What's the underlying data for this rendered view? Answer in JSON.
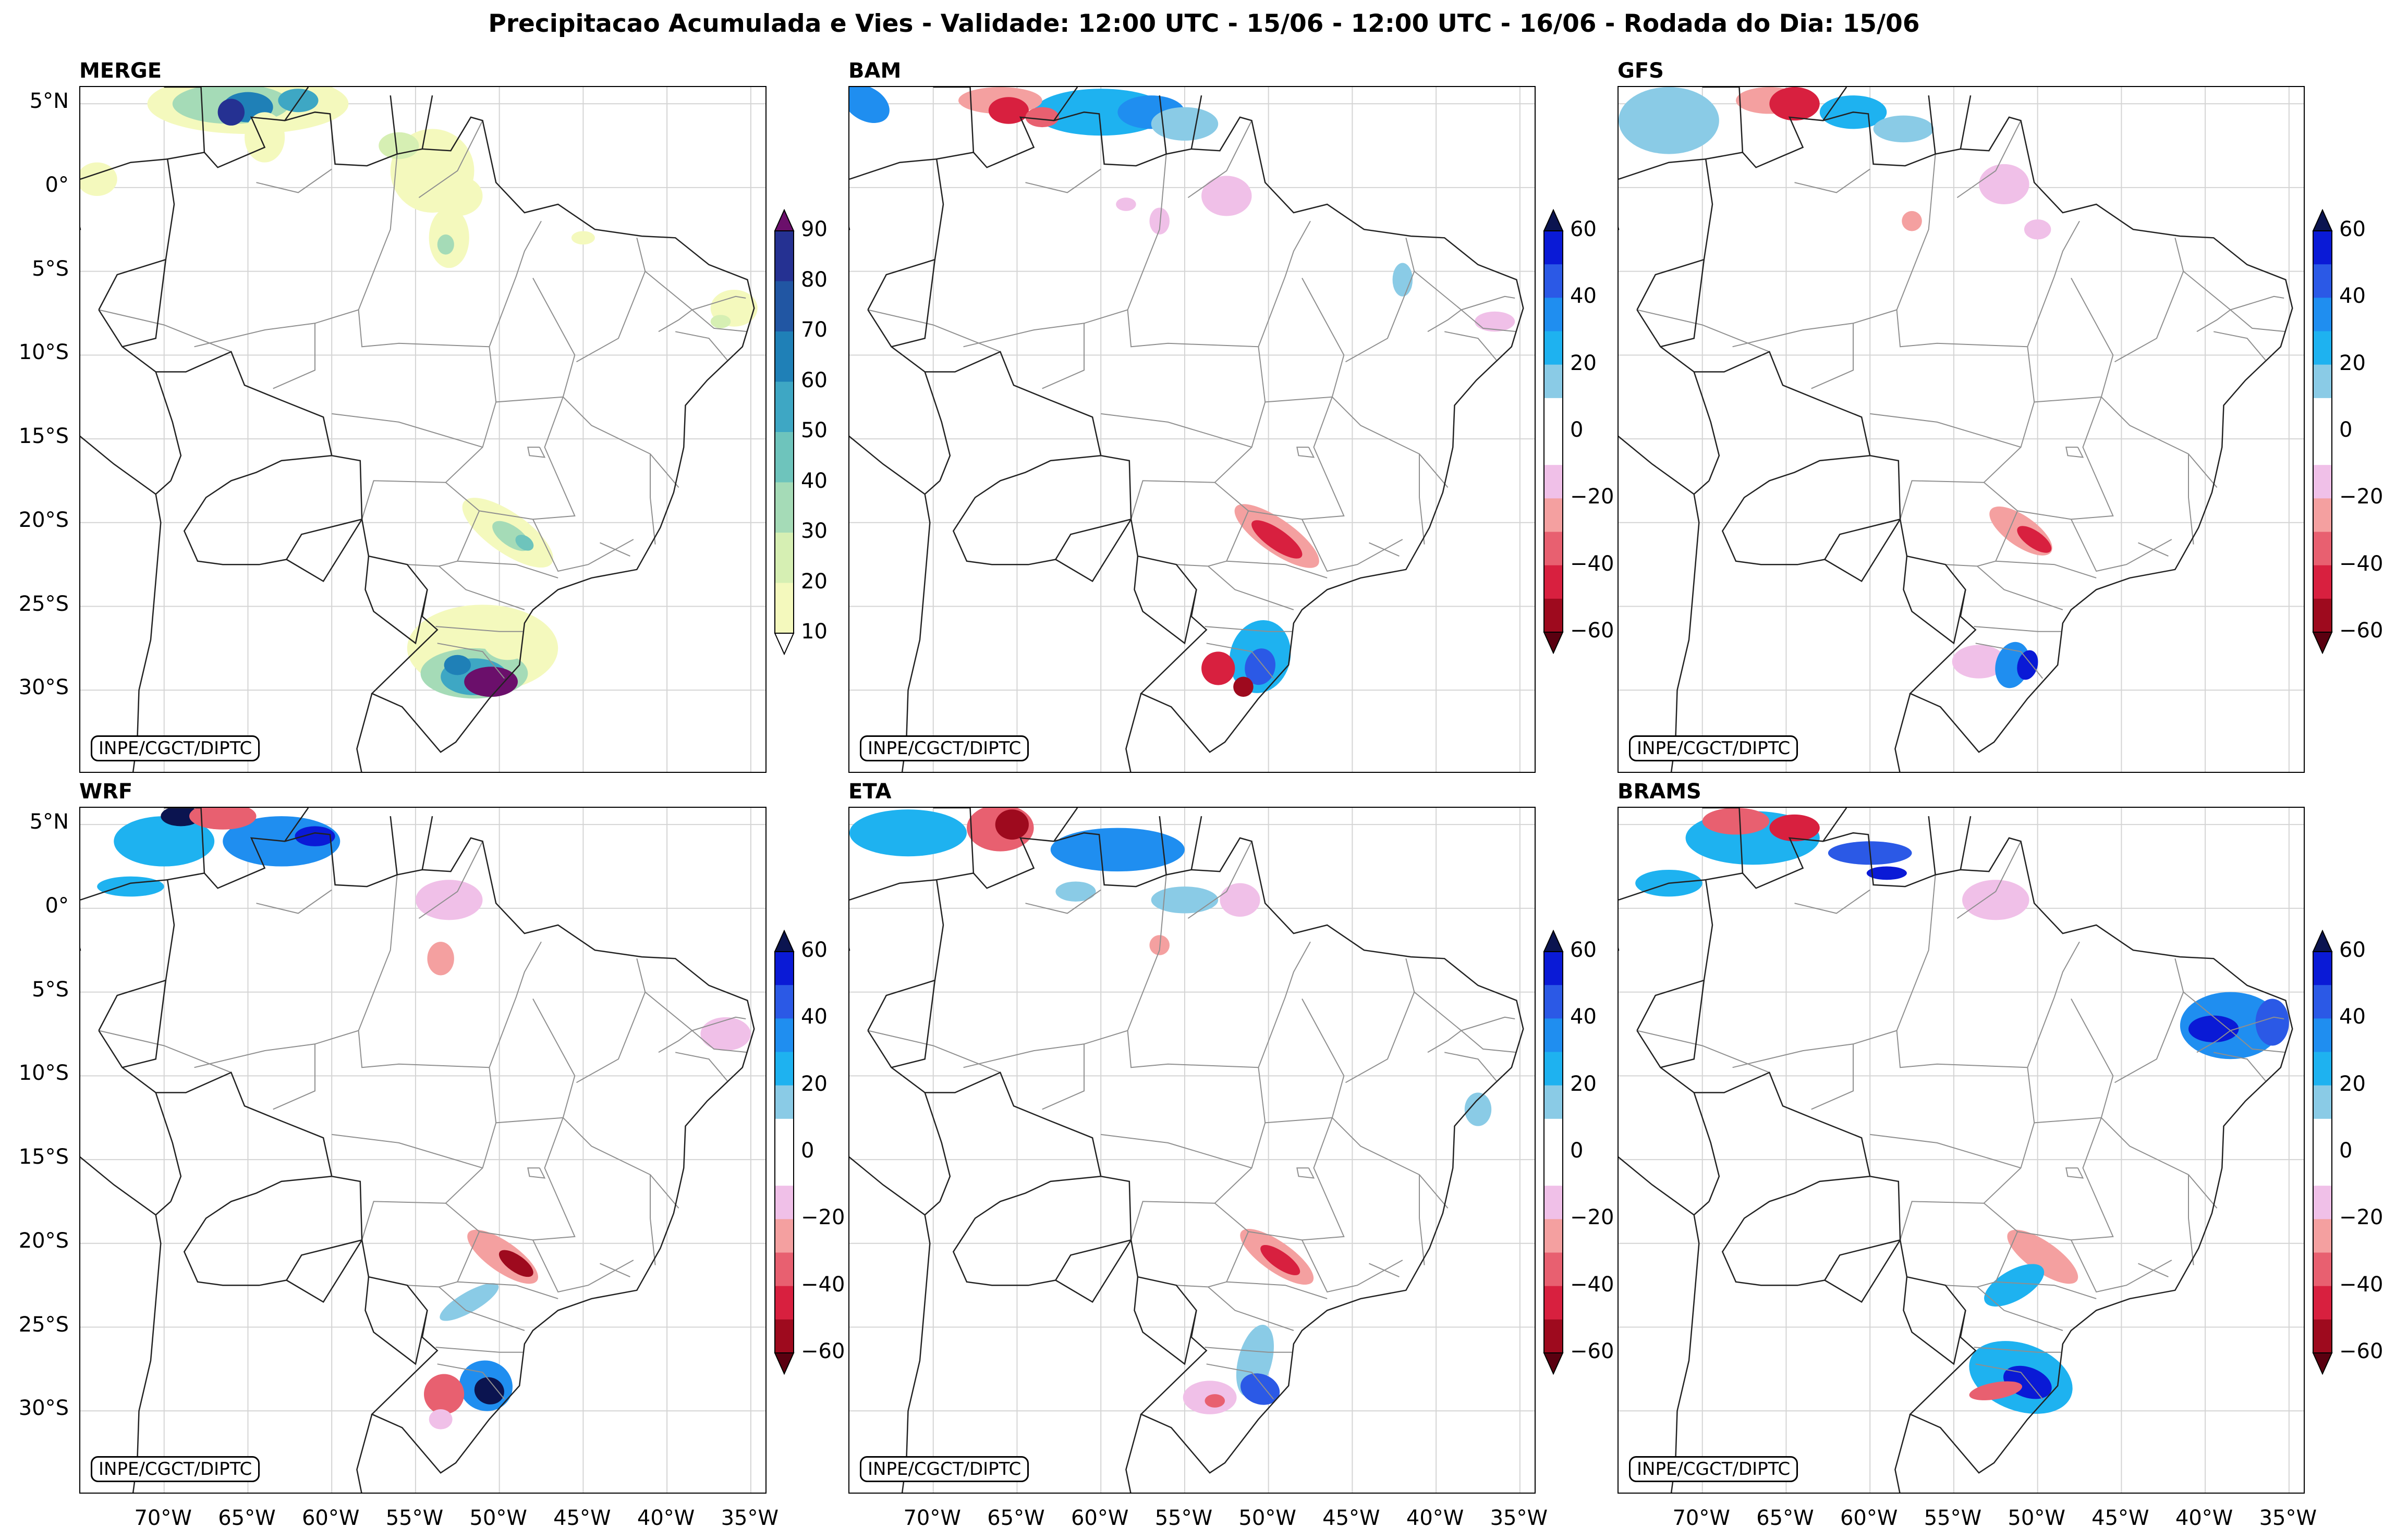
{
  "title": "Precipitacao Acumulada e Vies - Validade: 12:00 UTC - 15/06 - 12:00 UTC - 16/06 - Rodada do Dia: 15/06",
  "credit": "INPE/CGCT/DIPTC",
  "lat_labels": [
    "5°N",
    "0°",
    "5°S",
    "10°S",
    "15°S",
    "20°S",
    "25°S",
    "30°S"
  ],
  "lon_labels": [
    "70°W",
    "65°W",
    "60°W",
    "55°W",
    "50°W",
    "45°W",
    "40°W",
    "35°W"
  ],
  "panels": [
    {
      "name": "MERGE",
      "kind": "precip"
    },
    {
      "name": "BAM",
      "kind": "bias"
    },
    {
      "name": "GFS",
      "kind": "bias"
    },
    {
      "name": "WRF",
      "kind": "bias"
    },
    {
      "name": "ETA",
      "kind": "bias"
    },
    {
      "name": "BRAMS",
      "kind": "bias"
    }
  ],
  "colorbars": {
    "precip": {
      "ticks": [
        "10",
        "20",
        "30",
        "40",
        "50",
        "60",
        "70",
        "80",
        "90"
      ],
      "colors": [
        "#f4f9bd",
        "#d6efb3",
        "#a5dbb7",
        "#6ec4bc",
        "#3ea7c4",
        "#1f80b7",
        "#2156a3",
        "#253192",
        "#081d58"
      ],
      "under_color": "#ffffff",
      "over_color": "#6b0f6b"
    },
    "bias": {
      "ticks": [
        "60",
        "40",
        "20",
        "0",
        "−20",
        "−40",
        "−60"
      ],
      "colors_top_to_bottom": [
        "#0a1ad6",
        "#2b59e6",
        "#1f8ef0",
        "#1eb2f0",
        "#8acbe6",
        "#ffffff",
        "#ffffff",
        "#f0c0e8",
        "#f4a0a0",
        "#e86070",
        "#d8203f",
        "#9e0a1e"
      ],
      "over_color": "#0b1450",
      "under_color": "#5a0010"
    }
  }
}
